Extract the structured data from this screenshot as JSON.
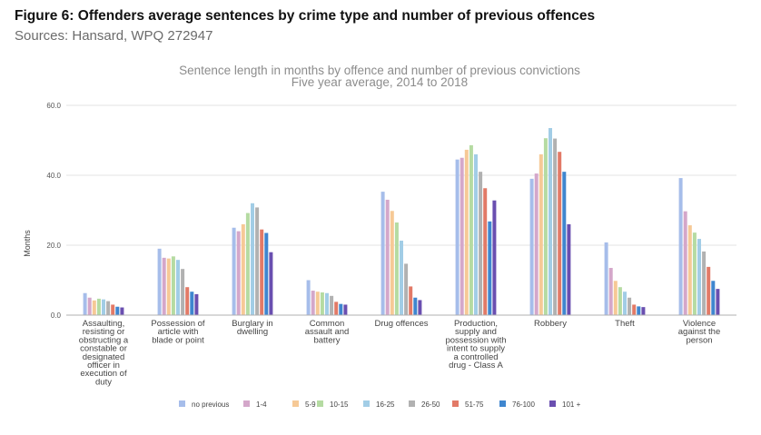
{
  "figure": {
    "title": "Figure 6: Offenders average sentences by crime type and number of previous offences",
    "subtitle": "Sources: Hansard, WPQ 272947"
  },
  "chart_data": {
    "type": "bar",
    "title": "Sentence length in months by offence and number of previous convictions",
    "subtitle": "Five year average, 2014 to 2018",
    "xlabel": "",
    "ylabel": "Months",
    "ylim": [
      0,
      60
    ],
    "yticks": [
      "0.0",
      "20.0",
      "40.0",
      "60.0"
    ],
    "grid": true,
    "legend_position": "bottom",
    "categories": [
      [
        "Assaulting,",
        "resisting or",
        "obstructing a",
        "constable or",
        "designated",
        "officer in",
        "execution of",
        "duty"
      ],
      [
        "Possession of",
        "article with",
        "blade or point"
      ],
      [
        "Burglary in",
        "dwelling"
      ],
      [
        "Common",
        "assault and",
        "battery"
      ],
      [
        "Drug offences"
      ],
      [
        "Production,",
        "supply and",
        "possession with",
        "intent to supply",
        "a controlled",
        "drug - Class A"
      ],
      [
        "Robbery"
      ],
      [
        "Theft"
      ],
      [
        "Violence",
        "against the",
        "person"
      ]
    ],
    "series": [
      {
        "name": "no previous",
        "color": "#a6bdea",
        "values": [
          6.3,
          19.0,
          25.0,
          10.0,
          35.3,
          44.5,
          39.0,
          20.8,
          39.2
        ]
      },
      {
        "name": "1-4",
        "color": "#d4a7ca",
        "values": [
          5.0,
          16.4,
          24.0,
          7.0,
          33.0,
          45.0,
          40.5,
          13.5,
          29.7
        ]
      },
      {
        "name": "5-9",
        "color": "#f6c996",
        "values": [
          4.2,
          16.2,
          26.0,
          6.7,
          29.8,
          47.3,
          46.0,
          9.8,
          25.7
        ]
      },
      {
        "name": "10-15",
        "color": "#b5dba2",
        "values": [
          4.7,
          16.8,
          29.2,
          6.5,
          26.5,
          48.6,
          50.6,
          8.0,
          23.6
        ]
      },
      {
        "name": "16-25",
        "color": "#a2cde6",
        "values": [
          4.5,
          15.8,
          32.0,
          6.3,
          21.3,
          46.0,
          53.5,
          6.7,
          21.8
        ]
      },
      {
        "name": "26-50",
        "color": "#b1b1b1",
        "values": [
          4.0,
          13.2,
          30.8,
          5.5,
          14.7,
          41.0,
          50.5,
          5.0,
          18.2
        ]
      },
      {
        "name": "51-75",
        "color": "#e27a67",
        "values": [
          3.0,
          8.0,
          24.5,
          3.8,
          8.2,
          36.3,
          46.7,
          3.0,
          13.8
        ]
      },
      {
        "name": "76-100",
        "color": "#3f86cf",
        "values": [
          2.4,
          6.7,
          23.5,
          3.2,
          5.0,
          26.8,
          41.0,
          2.5,
          9.8
        ]
      },
      {
        "name": "101 +",
        "color": "#6a4fb0",
        "values": [
          2.2,
          6.0,
          18.0,
          3.0,
          4.3,
          32.8,
          26.0,
          2.3,
          7.5
        ]
      }
    ]
  }
}
